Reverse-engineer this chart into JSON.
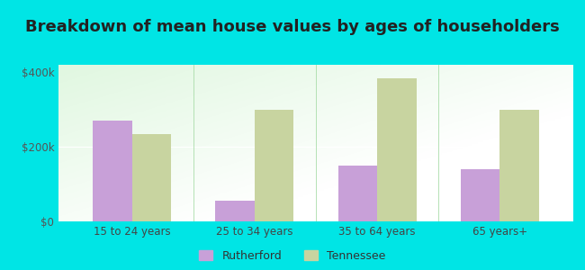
{
  "title": "Breakdown of mean house values by ages of householders",
  "categories": [
    "15 to 24 years",
    "25 to 34 years",
    "35 to 64 years",
    "65 years+"
  ],
  "rutherford": [
    270000,
    55000,
    150000,
    140000
  ],
  "tennessee": [
    235000,
    300000,
    385000,
    300000
  ],
  "rutherford_color": "#c8a0d8",
  "tennessee_color": "#c8d4a0",
  "background_color": "#00e5e5",
  "ylim": [
    0,
    420000
  ],
  "yticks": [
    0,
    200000,
    400000
  ],
  "ytick_labels": [
    "$0",
    "$200k",
    "$400k"
  ],
  "legend_rutherford": "Rutherford",
  "legend_tennessee": "Tennessee",
  "bar_width": 0.32,
  "title_fontsize": 13,
  "tick_fontsize": 8.5,
  "legend_fontsize": 9
}
